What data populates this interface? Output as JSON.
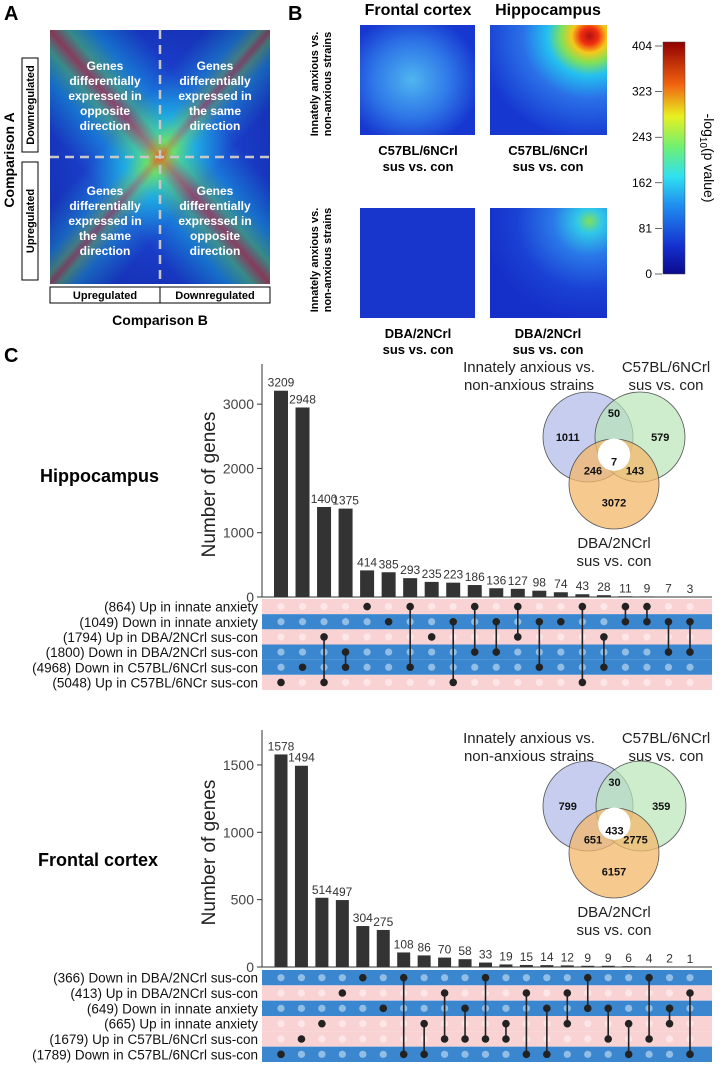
{
  "panel_labels": {
    "a": "A",
    "b": "B",
    "c": "C"
  },
  "panelA": {
    "ylabel": "Comparison A",
    "xlabel": "Comparison B",
    "row_labels": [
      "Downregulated",
      "Upregulated"
    ],
    "col_labels": [
      "Upregulated",
      "Downregulated"
    ],
    "quadrants": [
      [
        "Genes",
        "differentially",
        "expressed in",
        "opposite",
        "direction"
      ],
      [
        "Genes",
        "differentially",
        "expressed in",
        "the same",
        "direction"
      ],
      [
        "Genes",
        "differentially",
        "expressed in",
        "the same",
        "direction"
      ],
      [
        "Genes",
        "differentially",
        "expressed in",
        "opposite",
        "direction"
      ]
    ]
  },
  "panelB": {
    "col_titles": [
      "Frontal cortex",
      "Hippocampus"
    ],
    "row_label_line1": "Innately anxious vs.",
    "row_label_line2": "non-anxious strains",
    "captions": [
      [
        "C57BL/6NCrl",
        "sus vs. con"
      ],
      [
        "C57BL/6NCrl",
        "sus vs. con"
      ],
      [
        "DBA/2NCrl",
        "sus vs. con"
      ],
      [
        "DBA/2NCrl",
        "sus vs. con"
      ]
    ],
    "colorbar_ticks": [
      "404",
      "323",
      "243",
      "162",
      "81",
      "0"
    ],
    "colorbar_label": "-log",
    "colorbar_label_sub": "10",
    "colorbar_label_tail": "(p value)"
  },
  "chart_data": [
    {
      "type": "bar",
      "title": "Hippocampus",
      "ylabel": "Number of genes",
      "ylim": [
        0,
        3500
      ],
      "yticks": [
        0,
        1000,
        2000,
        3000
      ],
      "values": [
        3209,
        2948,
        1400,
        1375,
        414,
        385,
        293,
        235,
        223,
        186,
        136,
        127,
        98,
        74,
        43,
        28,
        11,
        9,
        7,
        3
      ],
      "sets": [
        "(864) Up in innate anxiety",
        "(1049) Down in innate anxiety",
        "(1794) Up in DBA/2NCrl sus-con",
        "(1800) Down in DBA/2NCrl sus-con",
        "(4968) Down in C57BL/6NCrl sus-con",
        "(5048) Up in C57BL/6NCr sus-con"
      ],
      "set_colors": [
        "#f9d2d4",
        "#3a87d0",
        "#f9d2d4",
        "#3a87d0",
        "#3a87d0",
        "#f9d2d4"
      ],
      "intersections": [
        [
          5
        ],
        [
          4
        ],
        [
          2,
          5
        ],
        [
          3,
          4
        ],
        [
          0
        ],
        [
          1
        ],
        [
          0,
          4
        ],
        [
          2
        ],
        [
          1,
          5
        ],
        [
          0,
          3
        ],
        [
          1,
          3
        ],
        [
          0,
          2
        ],
        [
          1,
          4
        ],
        [
          1
        ],
        [
          0,
          5
        ],
        [
          2,
          4
        ],
        [
          0,
          1
        ],
        [
          0,
          1
        ],
        [
          1,
          3
        ],
        [
          1,
          3
        ]
      ],
      "venn": {
        "labels": {
          "top_left": [
            "Innately anxious vs.",
            "non-anxious strains"
          ],
          "top_right": [
            "C57BL/6NCrl",
            "sus vs. con"
          ],
          "bottom": [
            "DBA/2NCrl",
            "sus vs. con"
          ]
        },
        "counts": {
          "a": "1011",
          "ab": "50",
          "b": "579",
          "abc": "7",
          "ac": "246",
          "bc": "143",
          "c": "3072"
        }
      }
    },
    {
      "type": "bar",
      "title": "Frontal cortex",
      "ylabel": "Number of genes",
      "ylim": [
        0,
        1700
      ],
      "yticks": [
        0,
        500,
        1000,
        1500
      ],
      "values": [
        1578,
        1494,
        514,
        497,
        304,
        275,
        108,
        86,
        70,
        58,
        33,
        19,
        15,
        14,
        12,
        9,
        9,
        6,
        4,
        2,
        1
      ],
      "sets": [
        "(366) Down in DBA/2NCrl sus-con",
        "(413) Up in DBA/2NCrl sus-con",
        "(649) Down in innate anxiety",
        "(665) Up in innate anxiety",
        "(1679) Up in C57BL/6NCrl sus-con",
        "(1789) Down in C57BL/6NCrl sus-con"
      ],
      "set_colors": [
        "#3a87d0",
        "#f9d2d4",
        "#3a87d0",
        "#f9d2d4",
        "#f9d2d4",
        "#3a87d0"
      ],
      "intersections": [
        [
          5
        ],
        [
          4
        ],
        [
          3
        ],
        [
          1
        ],
        [
          0
        ],
        [
          2
        ],
        [
          0,
          5
        ],
        [
          3,
          5
        ],
        [
          1,
          4
        ],
        [
          2,
          4
        ],
        [
          0,
          4
        ],
        [
          3,
          4
        ],
        [
          1,
          5
        ],
        [
          2,
          5
        ],
        [
          1,
          3
        ],
        [
          0,
          2
        ],
        [
          2,
          4
        ],
        [
          3,
          5
        ],
        [
          0,
          4
        ],
        [
          2,
          3
        ],
        [
          1,
          5
        ]
      ],
      "venn": {
        "labels": {
          "top_left": [
            "Innately anxious vs.",
            "non-anxious strains"
          ],
          "top_right": [
            "C57BL/6NCrl",
            "sus vs. con"
          ],
          "bottom": [
            "DBA/2NCrl",
            "sus vs. con"
          ]
        },
        "counts": {
          "a": "799",
          "ab": "30",
          "b": "359",
          "abc": "433",
          "ac": "651",
          "bc": "2775",
          "c": "6157"
        }
      }
    }
  ]
}
